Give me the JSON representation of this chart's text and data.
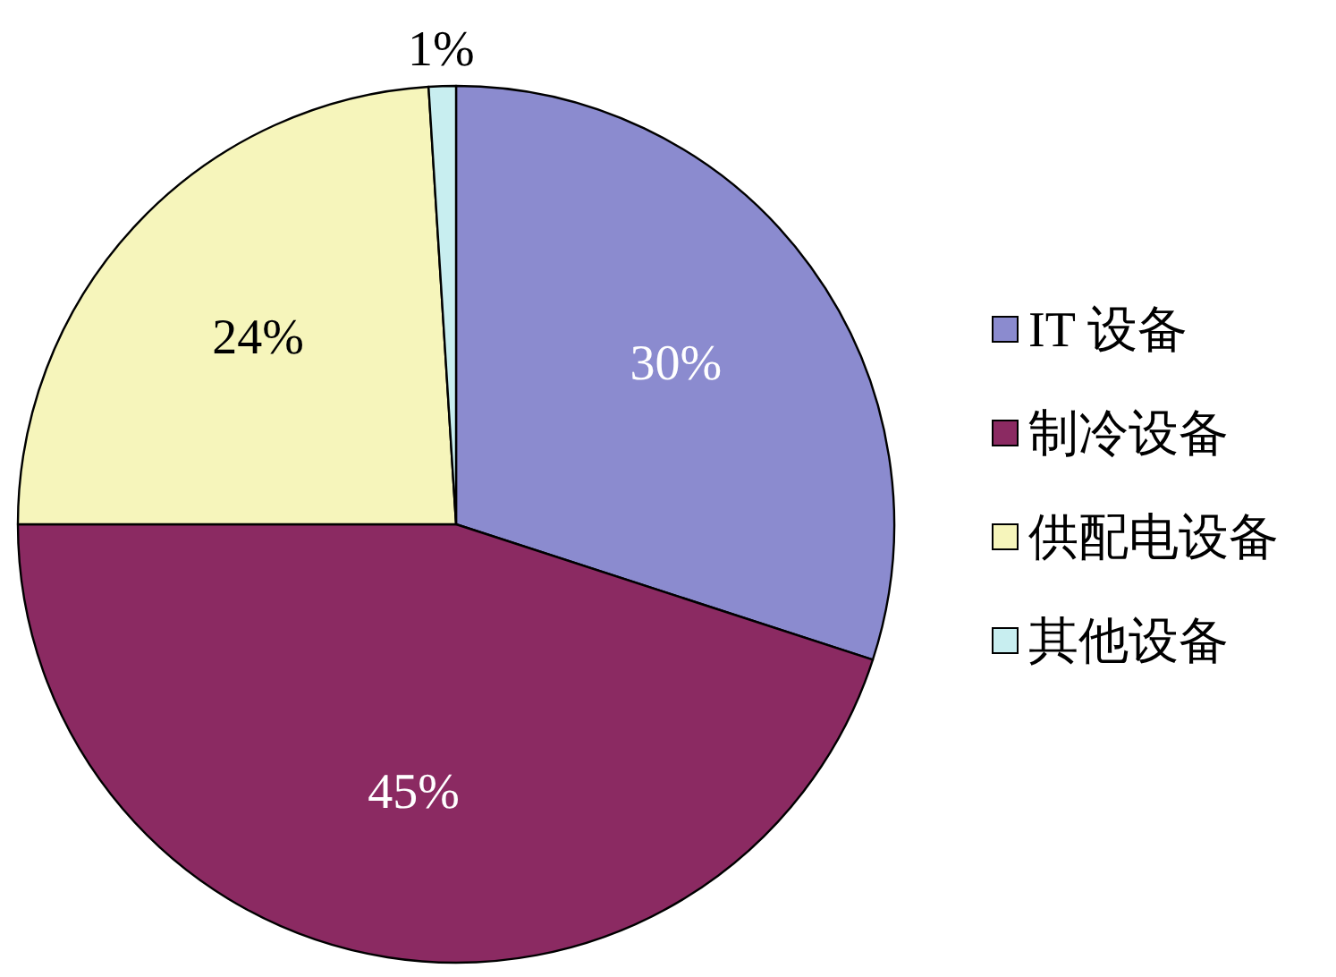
{
  "chart_data": {
    "type": "pie",
    "categories": [
      "IT 设备",
      "制冷设备",
      "供配电设备",
      "其他设备"
    ],
    "values": [
      30,
      45,
      24,
      1
    ],
    "colors": [
      "#8b8bcf",
      "#8b2a62",
      "#f6f5bb",
      "#c8eef0"
    ],
    "value_labels": [
      "30%",
      "45%",
      "24%",
      "1%"
    ],
    "legend": "right"
  }
}
